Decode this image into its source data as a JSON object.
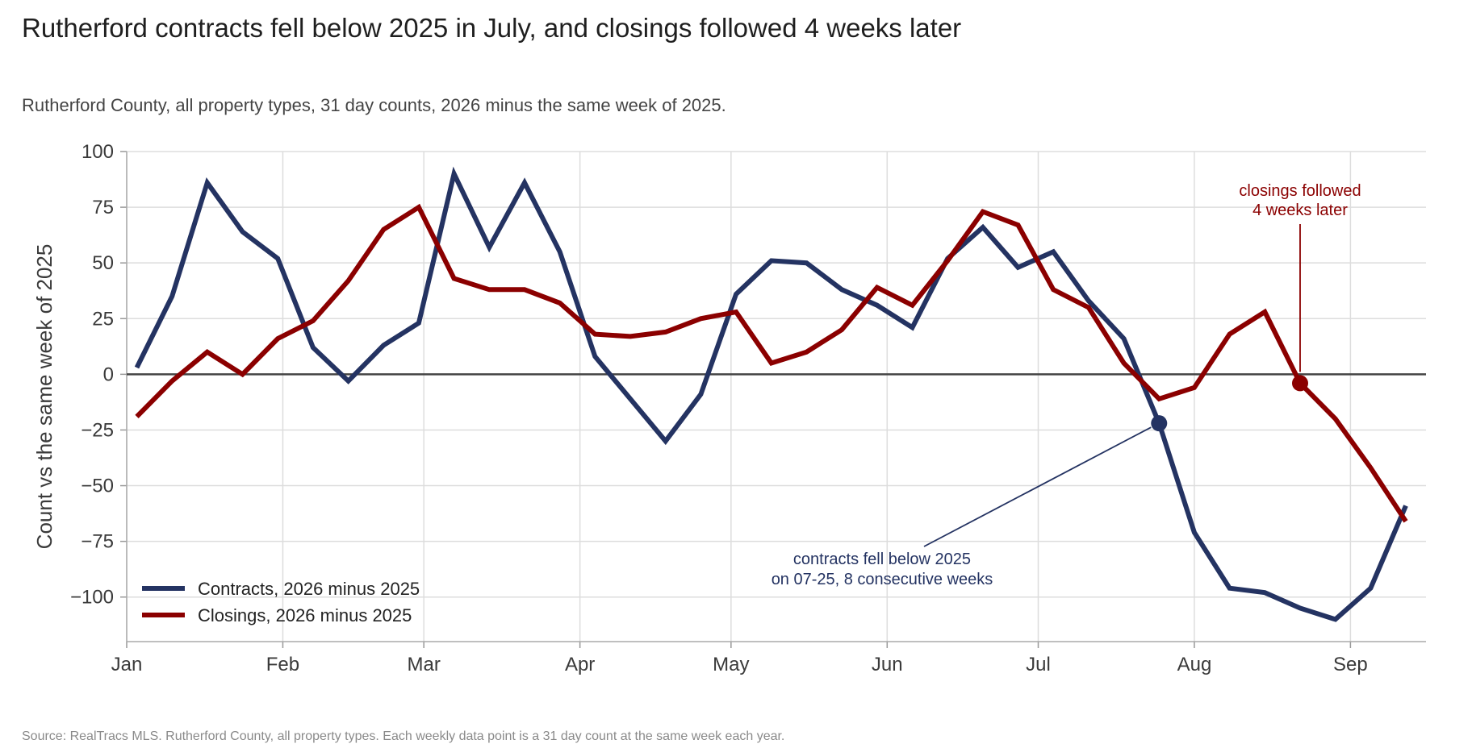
{
  "title": "Rutherford contracts fell below 2025 in July, and closings followed 4 weeks later",
  "subtitle": "Rutherford County, all property types, 31 day counts, 2026 minus the same week of 2025.",
  "source": "Source: RealTracs MLS. Rutherford County, all property types. Each weekly data point is a 31 day count at the same week each year.",
  "colors": {
    "contracts": "#243362",
    "closings": "#8b0000",
    "grid": "#dddddd",
    "zero": "#444444"
  },
  "chart_data": {
    "type": "line",
    "title": "Rutherford contracts fell below 2025 in July, and closings followed 4 weeks later",
    "xlabel": "",
    "ylabel": "Count vs the same week of 2025",
    "ylim": [
      -120,
      100
    ],
    "xlim": [
      "2026-01-01",
      "2026-09-16"
    ],
    "grid": true,
    "legend_position": "bottom-left",
    "y_ticks": [
      100,
      75,
      50,
      25,
      0,
      -25,
      -50,
      -75,
      -100
    ],
    "y_tick_labels": [
      "100",
      "75",
      "50",
      "25",
      "0",
      "−25",
      "−50",
      "−75",
      "−100"
    ],
    "x_ticks": [
      {
        "date": "2026-01-01",
        "label": "Jan"
      },
      {
        "date": "2026-02-01",
        "label": "Feb"
      },
      {
        "date": "2026-03-01",
        "label": "Mar"
      },
      {
        "date": "2026-04-01",
        "label": "Apr"
      },
      {
        "date": "2026-05-01",
        "label": "May"
      },
      {
        "date": "2026-06-01",
        "label": "Jun"
      },
      {
        "date": "2026-07-01",
        "label": "Jul"
      },
      {
        "date": "2026-08-01",
        "label": "Aug"
      },
      {
        "date": "2026-09-01",
        "label": "Sep"
      }
    ],
    "x": [
      "2026-01-03",
      "2026-01-10",
      "2026-01-17",
      "2026-01-24",
      "2026-01-31",
      "2026-02-07",
      "2026-02-14",
      "2026-02-21",
      "2026-02-28",
      "2026-03-07",
      "2026-03-14",
      "2026-03-21",
      "2026-03-28",
      "2026-04-04",
      "2026-04-11",
      "2026-04-18",
      "2026-04-25",
      "2026-05-02",
      "2026-05-09",
      "2026-05-16",
      "2026-05-23",
      "2026-05-30",
      "2026-06-06",
      "2026-06-13",
      "2026-06-20",
      "2026-06-27",
      "2026-07-04",
      "2026-07-11",
      "2026-07-18",
      "2026-07-25",
      "2026-08-01",
      "2026-08-08",
      "2026-08-15",
      "2026-08-22",
      "2026-08-29",
      "2026-09-05",
      "2026-09-12"
    ],
    "series": [
      {
        "name": "Contracts, 2026 minus 2025",
        "key": "contracts",
        "values": [
          3,
          35,
          86,
          64,
          52,
          12,
          -3,
          13,
          23,
          90,
          57,
          86,
          55,
          8,
          -11,
          -30,
          -9,
          36,
          51,
          50,
          38,
          31,
          21,
          52,
          66,
          48,
          55,
          33,
          16,
          -22,
          -71,
          -96,
          -98,
          -105,
          -110,
          -96,
          -59
        ]
      },
      {
        "name": "Closings, 2026 minus 2025",
        "key": "closings",
        "values": [
          -19,
          -3,
          10,
          0,
          16,
          24,
          42,
          65,
          75,
          43,
          38,
          38,
          32,
          18,
          17,
          19,
          25,
          28,
          5,
          10,
          20,
          39,
          31,
          51,
          73,
          67,
          38,
          30,
          5,
          -11,
          -6,
          18,
          28,
          -4,
          -20,
          -42,
          -66
        ]
      }
    ],
    "annotations": [
      {
        "key": "contracts",
        "date": "2026-07-25",
        "value": -22,
        "lines": [
          "contracts fell below 2025",
          "on 07-25, 8 consecutive weeks"
        ]
      },
      {
        "key": "closings",
        "date": "2026-08-22",
        "value": -4,
        "lines": [
          "closings followed",
          "4 weeks later"
        ]
      }
    ]
  }
}
